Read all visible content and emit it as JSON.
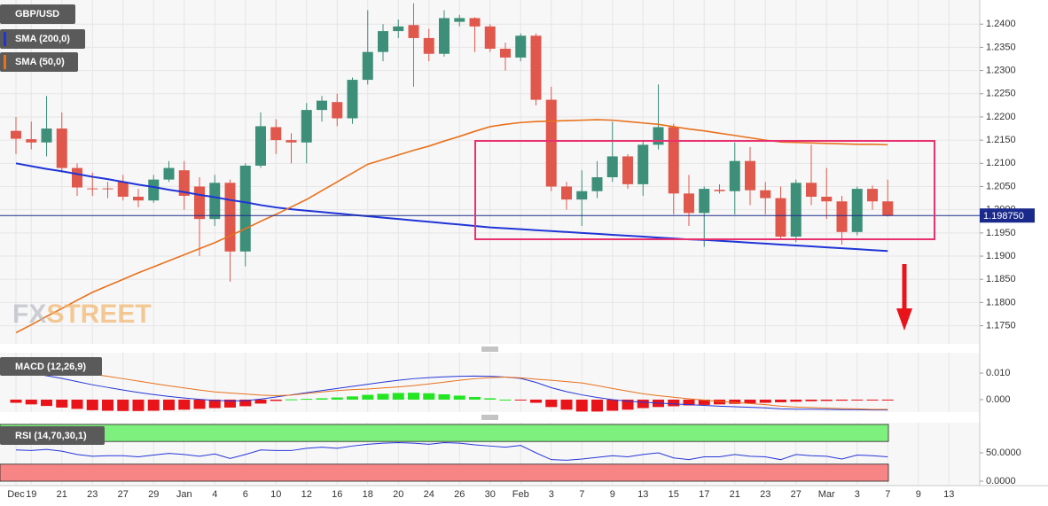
{
  "chart_data": [
    {
      "type": "candlestick",
      "categories": [
        "Dec",
        "19",
        null,
        "21",
        null,
        "23",
        null,
        "27",
        null,
        "29",
        null,
        "Jan",
        null,
        "4",
        null,
        "6",
        null,
        "10",
        null,
        "12",
        null,
        "16",
        null,
        "18",
        null,
        "20",
        null,
        "24",
        null,
        "26",
        null,
        "30",
        null,
        "Feb",
        null,
        "3",
        null,
        "7",
        null,
        "9",
        null,
        "13",
        null,
        "15",
        null,
        "17",
        null,
        "21",
        null,
        "23",
        null,
        "27",
        null,
        "Mar",
        null,
        "3",
        null,
        "7",
        null,
        "9",
        null,
        "13"
      ],
      "series": [
        {
          "name": "GBP/USD",
          "type": "candlestick",
          "up_color": "#3d8f79",
          "down_color": "#e0574c",
          "open": [
            1.217,
            1.2152,
            1.2145,
            1.2175,
            1.209,
            1.2046,
            1.2046,
            1.206,
            1.2028,
            1.202,
            1.2065,
            1.2085,
            1.205,
            1.198,
            1.2058,
            1.191,
            1.2095,
            1.2178,
            1.215,
            1.2145,
            1.2215,
            1.2232,
            1.2197,
            1.228,
            1.234,
            1.2385,
            1.2398,
            1.237,
            1.2336,
            1.2405,
            1.2413,
            1.2395,
            1.2347,
            1.2328,
            1.2375,
            1.2237,
            1.205,
            1.2022,
            1.204,
            1.207,
            1.2115,
            1.2055,
            1.214,
            1.2178,
            1.2035,
            1.1993,
            1.2043,
            1.204,
            1.2105,
            1.2042,
            1.2025,
            1.1942,
            1.2058,
            1.2028,
            1.2018,
            1.1952,
            1.2045,
            1.2018,
            null,
            null,
            null,
            null
          ],
          "high": [
            1.22,
            1.219,
            1.2245,
            1.221,
            1.21,
            1.208,
            1.206,
            1.2075,
            1.2045,
            1.2075,
            1.2105,
            1.2105,
            1.207,
            1.2075,
            1.2065,
            1.21,
            1.221,
            1.2195,
            1.2165,
            1.223,
            1.2245,
            1.225,
            1.2285,
            1.243,
            1.24,
            1.241,
            1.2445,
            1.239,
            1.243,
            1.242,
            1.2415,
            1.24,
            1.236,
            1.238,
            1.238,
            1.2265,
            1.206,
            1.2085,
            1.2105,
            1.219,
            1.212,
            1.215,
            1.227,
            1.2185,
            1.2075,
            1.205,
            1.2055,
            1.2145,
            1.2135,
            1.206,
            1.205,
            1.2065,
            1.214,
            1.209,
            1.203,
            1.205,
            1.2052,
            1.2065,
            null,
            null,
            null,
            null
          ],
          "low": [
            1.212,
            1.213,
            1.2115,
            1.208,
            1.203,
            1.203,
            1.2025,
            1.202,
            1.2005,
            1.2015,
            1.206,
            1.2,
            1.19,
            1.1965,
            1.1845,
            1.1878,
            1.209,
            1.212,
            1.21,
            1.21,
            1.219,
            1.218,
            1.2185,
            1.227,
            1.232,
            1.237,
            1.2265,
            1.232,
            1.233,
            1.2395,
            1.234,
            1.234,
            1.23,
            1.232,
            1.2225,
            1.204,
            1.2,
            1.1965,
            1.2025,
            1.206,
            1.2045,
            1.203,
            1.213,
            1.199,
            1.1965,
            1.192,
            1.2035,
            1.199,
            1.201,
            1.199,
            1.1935,
            1.193,
            1.201,
            1.198,
            1.1925,
            1.1945,
            1.2,
            1.1985,
            null,
            null,
            null,
            null
          ],
          "close": [
            1.2153,
            1.2145,
            1.2175,
            1.209,
            1.2048,
            1.2045,
            1.2045,
            1.2028,
            1.202,
            1.2065,
            1.209,
            1.203,
            1.198,
            1.2058,
            1.191,
            1.2095,
            1.218,
            1.215,
            1.2145,
            1.2215,
            1.2235,
            1.2197,
            1.228,
            1.234,
            1.2385,
            1.2395,
            1.237,
            1.2336,
            1.2413,
            1.2413,
            1.2395,
            1.2347,
            1.2328,
            1.2375,
            1.2237,
            1.205,
            1.2022,
            1.204,
            1.207,
            1.2115,
            1.2055,
            1.214,
            1.2178,
            1.2035,
            1.1993,
            1.2045,
            1.204,
            1.2105,
            1.2042,
            1.2025,
            1.1942,
            1.2058,
            1.2028,
            1.2018,
            1.1952,
            1.2045,
            1.2018,
            1.19875,
            null,
            null,
            null,
            null
          ]
        },
        {
          "name": "SMA (200,0)",
          "type": "line",
          "color": "#1f35d6",
          "values": [
            1.21,
            1.2094,
            1.2088,
            1.2083,
            1.2077,
            1.2071,
            1.2066,
            1.206,
            1.2054,
            1.2049,
            1.2043,
            1.2038,
            1.2032,
            1.2027,
            1.2021,
            1.2016,
            1.201,
            1.2005,
            1.2001,
            1.1998,
            1.1995,
            1.1992,
            1.1989,
            1.1986,
            1.1983,
            1.198,
            1.1977,
            1.1974,
            1.1971,
            1.1968,
            1.1965,
            1.1962,
            1.196,
            1.1958,
            1.1956,
            1.1954,
            1.1952,
            1.195,
            1.1948,
            1.1946,
            1.1944,
            1.1942,
            1.194,
            1.1938,
            1.1936,
            1.1935,
            1.1933,
            1.1931,
            1.1929,
            1.1927,
            1.1925,
            1.1923,
            1.1921,
            1.1919,
            1.1917,
            1.1915,
            1.1913,
            1.1911,
            null,
            null,
            null,
            null
          ]
        },
        {
          "name": "SMA (50,0)",
          "type": "line",
          "color": "#e8711c",
          "values": [
            1.1735,
            1.1752,
            1.177,
            1.1787,
            1.1805,
            1.1822,
            1.1836,
            1.185,
            1.1864,
            1.1877,
            1.189,
            1.1903,
            1.1916,
            1.1929,
            1.1944,
            1.1959,
            1.1975,
            1.199,
            1.2006,
            1.2022,
            1.2041,
            1.206,
            1.2079,
            1.2098,
            1.2108,
            1.2118,
            1.2128,
            1.2137,
            1.2148,
            1.2158,
            1.2169,
            1.2179,
            1.2184,
            1.2188,
            1.219,
            1.2191,
            1.2192,
            1.2193,
            1.2194,
            1.2193,
            1.219,
            1.2187,
            1.2184,
            1.2179,
            1.2174,
            1.217,
            1.2165,
            1.216,
            1.2155,
            1.215,
            1.2146,
            1.2145,
            1.2144,
            1.2143,
            1.2142,
            1.2141,
            1.2141,
            1.214,
            null,
            null,
            null,
            null
          ]
        }
      ],
      "ylim": [
        1.1711,
        1.2452
      ],
      "yticks": [
        {
          "value": 1.175,
          "label": "1.1750"
        },
        {
          "value": 1.18,
          "label": "1.1800"
        },
        {
          "value": 1.185,
          "label": "1.1850"
        },
        {
          "value": 1.19,
          "label": "1.1900"
        },
        {
          "value": 1.195,
          "label": "1.1950"
        },
        {
          "value": 1.2,
          "label": "1.2000"
        },
        {
          "value": 1.205,
          "label": "1.2050"
        },
        {
          "value": 1.21,
          "label": "1.2100"
        },
        {
          "value": 1.215,
          "label": "1.2150"
        },
        {
          "value": 1.22,
          "label": "1.2200"
        },
        {
          "value": 1.225,
          "label": "1.2250"
        },
        {
          "value": 1.23,
          "label": "1.2300"
        },
        {
          "value": 1.235,
          "label": "1.2350"
        },
        {
          "value": 1.24,
          "label": "1.2400"
        }
      ],
      "grid": true,
      "last_price": {
        "value": 1.19875,
        "label": "1.198750",
        "color": "#1a2a8c"
      }
    },
    {
      "type": "macd",
      "label": "MACD (12,26,9)",
      "macd": {
        "color": "#2536d8",
        "values": [
          0.011,
          0.01,
          0.009,
          0.008,
          0.0068,
          0.0056,
          0.0046,
          0.0036,
          0.0027,
          0.0019,
          0.0012,
          0.0006,
          0.0001,
          -0.0003,
          -0.0005,
          -0.0004,
          0.0002,
          0.001,
          0.0018,
          0.0026,
          0.0034,
          0.0042,
          0.005,
          0.0058,
          0.0066,
          0.0073,
          0.0079,
          0.0083,
          0.0086,
          0.0088,
          0.0089,
          0.0088,
          0.0085,
          0.008,
          0.0065,
          0.0045,
          0.003,
          0.0018,
          0.0008,
          0.0,
          -0.0006,
          -0.001,
          -0.0013,
          -0.0016,
          -0.0019,
          -0.0022,
          -0.0025,
          -0.0027,
          -0.0029,
          -0.0031,
          -0.0035,
          -0.0036,
          -0.0036,
          -0.0037,
          -0.0038,
          -0.0038,
          -0.0039,
          -0.0039,
          null,
          null,
          null,
          null
        ]
      },
      "signal": {
        "color": "#e8711c",
        "values": [
          0.0122,
          0.0118,
          0.0114,
          0.011,
          0.0103,
          0.0096,
          0.0088,
          0.0079,
          0.007,
          0.0061,
          0.0052,
          0.0044,
          0.0036,
          0.0029,
          0.0025,
          0.0021,
          0.0017,
          0.0015,
          0.0017,
          0.0023,
          0.0029,
          0.0034,
          0.0038,
          0.004,
          0.0044,
          0.0048,
          0.0053,
          0.0059,
          0.0066,
          0.0073,
          0.0079,
          0.0083,
          0.0085,
          0.0082,
          0.0077,
          0.0073,
          0.0068,
          0.0063,
          0.0053,
          0.0042,
          0.0032,
          0.0022,
          0.0015,
          0.0009,
          0.0003,
          -0.0002,
          -0.0007,
          -0.0011,
          -0.0015,
          -0.0019,
          -0.0025,
          -0.0028,
          -0.003,
          -0.0032,
          -0.0034,
          -0.0035,
          -0.0037,
          -0.0037,
          null,
          null,
          null,
          null
        ]
      },
      "histogram": {
        "up_color": "#22e622",
        "down_color": "#e8141a",
        "values": [
          -0.0012,
          -0.0018,
          -0.0024,
          -0.003,
          -0.0035,
          -0.004,
          -0.0042,
          -0.0043,
          -0.0043,
          -0.0042,
          -0.004,
          -0.0038,
          -0.0035,
          -0.0032,
          -0.003,
          -0.0025,
          -0.0015,
          -0.0005,
          0.0001,
          0.0003,
          0.0005,
          0.0008,
          0.0012,
          0.0018,
          0.0022,
          0.0025,
          0.0026,
          0.0024,
          0.002,
          0.0015,
          0.001,
          0.0005,
          0.0,
          -0.0002,
          -0.0012,
          -0.0028,
          -0.0038,
          -0.0045,
          -0.0045,
          -0.0042,
          -0.0038,
          -0.0032,
          -0.0028,
          -0.0025,
          -0.0022,
          -0.002,
          -0.0018,
          -0.0016,
          -0.0014,
          -0.0012,
          -0.001,
          -0.0008,
          -0.0006,
          -0.0005,
          -0.0004,
          -0.0003,
          -0.0002,
          -0.0002,
          null,
          null,
          null,
          null
        ]
      },
      "ylim": [
        -0.0047,
        0.0177
      ],
      "yticks": [
        {
          "value": 0,
          "label": "0.000"
        },
        {
          "value": 0.01,
          "label": "0.010"
        }
      ]
    },
    {
      "type": "line",
      "label": "RSI (14,70,30,1)",
      "color": "#2536d8",
      "values": [
        55,
        54,
        56,
        53,
        47,
        44,
        45,
        45,
        43,
        46,
        49,
        47,
        44,
        48,
        40,
        47,
        55,
        54,
        54,
        58,
        60,
        58,
        62,
        65,
        67,
        68,
        67,
        65,
        68,
        67,
        64,
        62,
        60,
        63,
        50,
        38,
        37,
        39,
        42,
        45,
        43,
        47,
        50,
        41,
        38,
        43,
        43,
        47,
        44,
        43,
        38,
        47,
        45,
        44,
        39,
        46,
        45,
        43,
        null,
        null,
        null,
        null
      ],
      "zones": [
        {
          "from": 70,
          "to": 100,
          "color": "#7ef07e"
        },
        {
          "from": 0,
          "to": 30,
          "color": "#f78585"
        }
      ],
      "ylim": [
        -7.8,
        103.1
      ],
      "yticks": [
        {
          "value": 0,
          "label": "0.0000"
        },
        {
          "value": 50,
          "label": "50.0000"
        }
      ]
    }
  ],
  "watermark": [
    "FX",
    "STREET"
  ]
}
